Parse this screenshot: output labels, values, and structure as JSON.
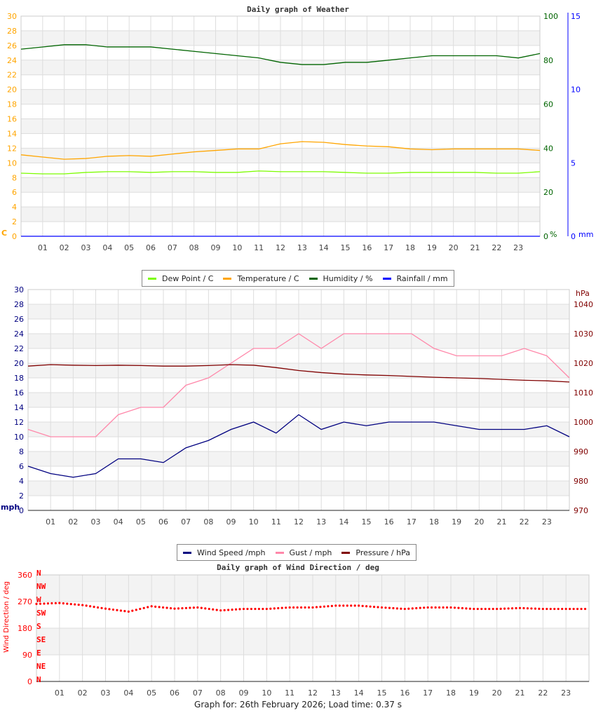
{
  "chart_data": [
    {
      "type": "line",
      "title": "Daily graph of Weather",
      "x_ticks": [
        "01",
        "02",
        "03",
        "04",
        "05",
        "06",
        "07",
        "08",
        "09",
        "10",
        "11",
        "12",
        "13",
        "14",
        "15",
        "16",
        "17",
        "18",
        "19",
        "20",
        "21",
        "22",
        "23"
      ],
      "y_left": {
        "label": "C",
        "range": [
          0,
          30
        ],
        "ticks": [
          0,
          2,
          4,
          6,
          8,
          10,
          12,
          14,
          16,
          18,
          20,
          22,
          24,
          26,
          28,
          30
        ],
        "color": "#ffa500"
      },
      "y_right": {
        "label": "%",
        "range": [
          0,
          100
        ],
        "ticks": [
          0,
          20,
          40,
          60,
          80,
          100
        ],
        "color": "#006400"
      },
      "y_right2": {
        "label": "mm",
        "range": [
          0,
          15
        ],
        "ticks": [
          0,
          5,
          10,
          15
        ],
        "color": "#0000ff"
      },
      "hours": [
        0,
        1,
        2,
        3,
        4,
        5,
        6,
        7,
        8,
        9,
        10,
        11,
        12,
        13,
        14,
        15,
        16,
        17,
        18,
        19,
        20,
        21,
        22,
        23,
        24
      ],
      "series": [
        {
          "name": "Dew Point / C",
          "axis": "left",
          "color": "#7cfc00",
          "values": [
            8.6,
            8.5,
            8.5,
            8.7,
            8.8,
            8.8,
            8.7,
            8.8,
            8.8,
            8.7,
            8.7,
            8.9,
            8.8,
            8.8,
            8.8,
            8.7,
            8.6,
            8.6,
            8.7,
            8.7,
            8.7,
            8.7,
            8.6,
            8.6,
            8.8
          ]
        },
        {
          "name": "Temperature / C",
          "axis": "left",
          "color": "#ffa500",
          "values": [
            11.1,
            10.8,
            10.5,
            10.6,
            10.9,
            11.0,
            10.9,
            11.2,
            11.5,
            11.7,
            11.9,
            11.9,
            12.6,
            12.9,
            12.8,
            12.5,
            12.3,
            12.2,
            11.9,
            11.8,
            11.9,
            11.9,
            11.9,
            11.9,
            11.7
          ]
        },
        {
          "name": "Humidity / %",
          "axis": "right",
          "color": "#006400",
          "values": [
            85,
            86,
            87,
            87,
            86,
            86,
            86,
            85,
            84,
            83,
            82,
            81,
            79,
            78,
            78,
            79,
            79,
            80,
            81,
            82,
            82,
            82,
            82,
            81,
            83
          ]
        },
        {
          "name": "Rainfall / mm",
          "axis": "right2",
          "color": "#0000ff",
          "values": [
            0,
            0,
            0,
            0,
            0,
            0,
            0,
            0,
            0,
            0,
            0,
            0,
            0,
            0,
            0,
            0,
            0,
            0,
            0,
            0,
            0,
            0,
            0,
            0,
            0
          ]
        }
      ]
    },
    {
      "type": "line",
      "title": "",
      "x_ticks": [
        "01",
        "02",
        "03",
        "04",
        "05",
        "06",
        "07",
        "08",
        "09",
        "10",
        "11",
        "12",
        "13",
        "14",
        "15",
        "16",
        "17",
        "18",
        "19",
        "20",
        "21",
        "22",
        "23"
      ],
      "y_left": {
        "label": "mph",
        "range": [
          0,
          30
        ],
        "ticks": [
          0,
          2,
          4,
          6,
          8,
          10,
          12,
          14,
          16,
          18,
          20,
          22,
          24,
          26,
          28,
          30
        ],
        "color": "#000080"
      },
      "y_right": {
        "label": "hPa",
        "range": [
          970,
          1045
        ],
        "ticks": [
          970,
          980,
          990,
          1000,
          1010,
          1020,
          1030,
          1040
        ],
        "color": "#800000"
      },
      "hours": [
        0,
        1,
        2,
        3,
        4,
        5,
        6,
        7,
        8,
        9,
        10,
        11,
        12,
        13,
        14,
        15,
        16,
        17,
        18,
        19,
        20,
        21,
        22,
        23,
        24
      ],
      "series": [
        {
          "name": "Wind Speed /mph",
          "axis": "left",
          "color": "#000080",
          "values": [
            6,
            5,
            4.5,
            5,
            7,
            7,
            6.5,
            8.5,
            9.5,
            11,
            12,
            10.5,
            13,
            11,
            12,
            11.5,
            12,
            12,
            12,
            11.5,
            11,
            11,
            11,
            11.5,
            10
          ]
        },
        {
          "name": "Gust / mph",
          "axis": "left",
          "color": "#ff88aa",
          "values": [
            11,
            10,
            10,
            10,
            13,
            14,
            14,
            17,
            18,
            20,
            22,
            22,
            24,
            22,
            24,
            24,
            24,
            24,
            22,
            21,
            21,
            21,
            22,
            21,
            18
          ]
        },
        {
          "name": "Pressure / hPa",
          "axis": "right",
          "color": "#800000",
          "values": [
            1019,
            1019.5,
            1019.3,
            1019.2,
            1019.3,
            1019.2,
            1019,
            1019,
            1019.2,
            1019.5,
            1019.3,
            1018.5,
            1017.5,
            1016.8,
            1016.3,
            1016,
            1015.8,
            1015.5,
            1015.2,
            1015,
            1014.8,
            1014.5,
            1014.2,
            1014,
            1013.6
          ]
        }
      ]
    },
    {
      "type": "scatter",
      "title": "Daily graph of Wind Direction / deg",
      "x_ticks": [
        "01",
        "02",
        "03",
        "04",
        "05",
        "06",
        "07",
        "08",
        "09",
        "10",
        "11",
        "12",
        "13",
        "14",
        "15",
        "16",
        "17",
        "18",
        "19",
        "20",
        "21",
        "22",
        "23"
      ],
      "y_left": {
        "label": "Wind Direction / deg",
        "range": [
          0,
          360
        ],
        "ticks": [
          0,
          90,
          180,
          270,
          360
        ],
        "color": "#ff0000"
      },
      "compass": [
        "N",
        "NW",
        "W",
        "SW",
        "S",
        "SE",
        "E",
        "NE",
        "N"
      ],
      "hours": [
        0,
        1,
        2,
        3,
        4,
        5,
        6,
        7,
        8,
        9,
        10,
        11,
        12,
        13,
        14,
        15,
        16,
        17,
        18,
        19,
        20,
        21,
        22,
        23,
        24
      ],
      "series": [
        {
          "name": "Wind Direction",
          "color": "#ff0000",
          "values": [
            262,
            265,
            258,
            246,
            236,
            254,
            246,
            250,
            240,
            245,
            245,
            250,
            250,
            256,
            256,
            250,
            245,
            250,
            250,
            245,
            245,
            248,
            245,
            245,
            245
          ]
        }
      ]
    }
  ],
  "legend1": [
    "Dew Point / C",
    "Temperature / C",
    "Humidity / %",
    "Rainfall / mm"
  ],
  "legend2": [
    "Wind Speed /mph",
    "Gust / mph",
    "Pressure / hPa"
  ],
  "footer": "Graph for: 26th February 2026; Load time: 0.37 s"
}
